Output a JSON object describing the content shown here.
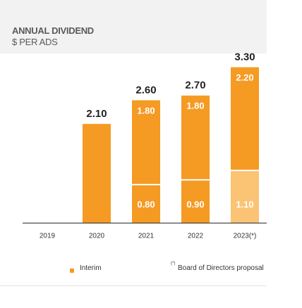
{
  "header": {
    "title": "ANNUAL DIVIDEND",
    "subtitle": "$ PER ADS"
  },
  "chart_data": {
    "type": "bar",
    "stacked": true,
    "categories": [
      "2019",
      "2020",
      "2021",
      "2022",
      "2023(*)"
    ],
    "totals": [
      null,
      2.1,
      2.6,
      2.7,
      3.3
    ],
    "total_labels": [
      "",
      "2.10",
      "2.60",
      "2.70",
      "3.30"
    ],
    "series": [
      {
        "name": "Interim",
        "values": [
          null,
          null,
          0.8,
          0.9,
          1.1
        ],
        "labels": [
          "",
          "",
          "0.80",
          "0.90",
          "1.10"
        ],
        "color": "#f59a23"
      },
      {
        "values": [
          null,
          2.1,
          1.8,
          1.8,
          2.2
        ],
        "labels": [
          "",
          "",
          "1.80",
          "1.80",
          "2.20"
        ],
        "color": "#f59a23"
      }
    ],
    "highlight_color": "#fbc374",
    "highlight_category": "2023(*)",
    "separator_color": "#ffffff",
    "axis_color": "#2a2a2a"
  },
  "legend": {
    "interim_label": "Interim",
    "footnote_marker": "(*)",
    "footnote_text": "Board of Directors proposal",
    "marker_color": "#f59a23"
  }
}
